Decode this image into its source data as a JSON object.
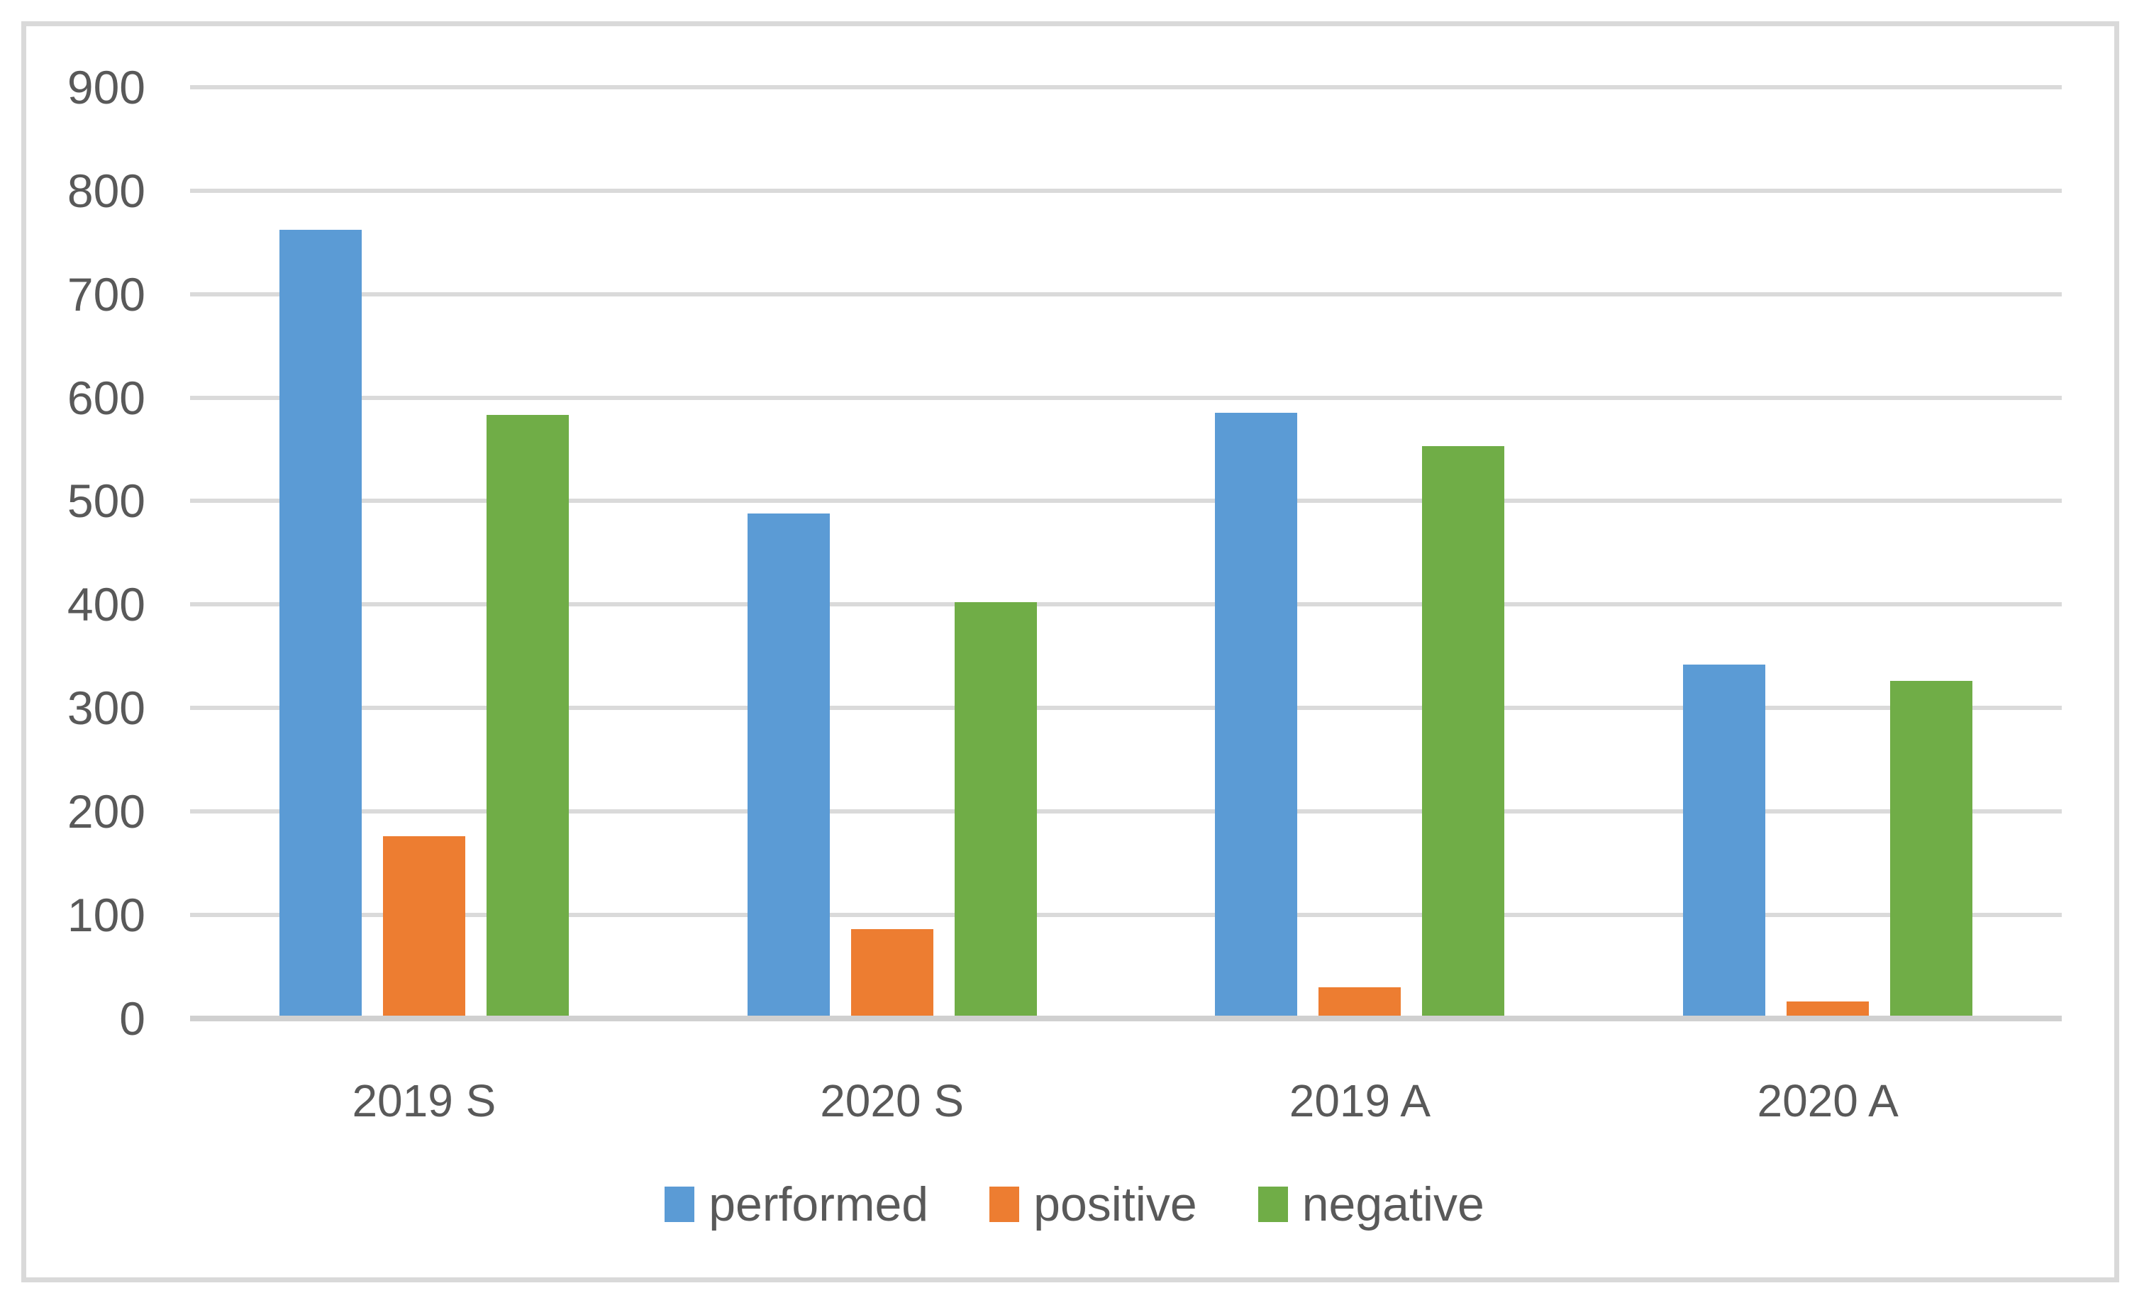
{
  "figure": {
    "background_color": "#ffffff",
    "border_color": "#d9d9d9"
  },
  "style": {
    "text_color": "#595959",
    "gridline_color": "#dadada",
    "axis_line_color": "#d0d0d0"
  },
  "chart_data": {
    "type": "bar",
    "title": "",
    "xlabel": "",
    "ylabel": "",
    "categories": [
      "2019 S",
      "2020 S",
      "2019 A",
      "2020 A"
    ],
    "series": [
      {
        "name": "performed",
        "color": "#5b9bd5",
        "values": [
          762,
          488,
          585,
          342
        ]
      },
      {
        "name": "positive",
        "color": "#ed7d31",
        "values": [
          176,
          86,
          30,
          16
        ]
      },
      {
        "name": "negative",
        "color": "#70ad47",
        "values": [
          583,
          402,
          553,
          326
        ]
      }
    ],
    "ylim": [
      0,
      900
    ],
    "ytick_interval": 100,
    "yticks": [
      900,
      800,
      700,
      600,
      500,
      400,
      300,
      200,
      100,
      0
    ],
    "grid": "horizontal",
    "legend_position": "bottom"
  }
}
